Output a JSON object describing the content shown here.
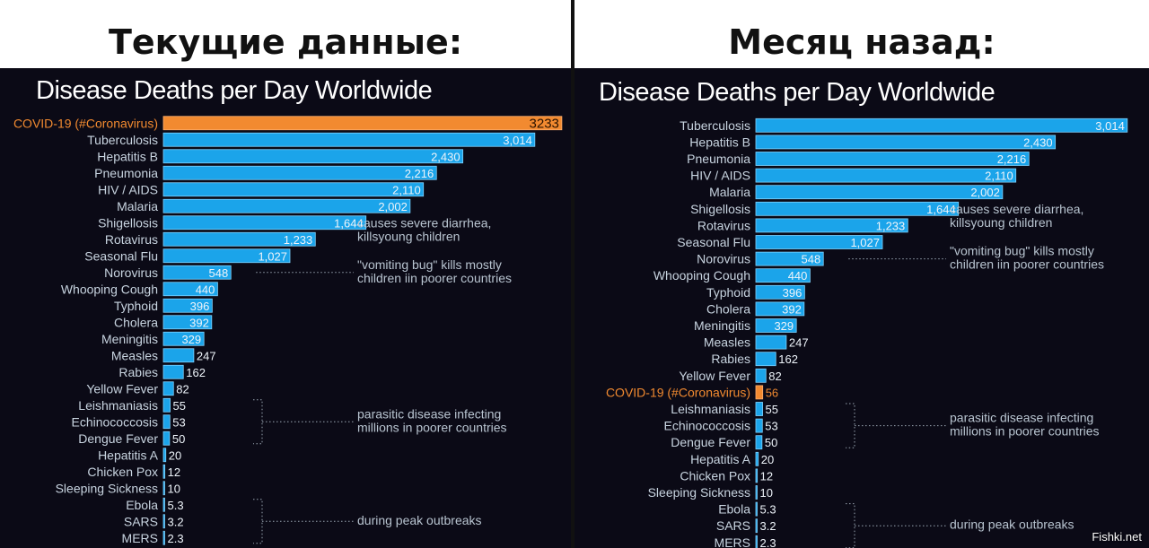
{
  "headings": {
    "left": "Текущие данные:",
    "right": "Месяц назад:"
  },
  "watermark": "Fishki.net",
  "colors": {
    "bar": "#1ba4ea",
    "bar_edge": "#7fd3ff",
    "highlight": "#f28a30",
    "background": "#0b0a16"
  },
  "chart_data": [
    {
      "type": "bar",
      "orientation": "horizontal",
      "title": "Disease Deaths per Day Worldwide",
      "highlight": "COVID-19 (#Coronavirus)",
      "categories": [
        "COVID-19 (#Coronavirus)",
        "Tuberculosis",
        "Hepatitis B",
        "Pneumonia",
        "HIV / AIDS",
        "Malaria",
        "Shigellosis",
        "Rotavirus",
        "Seasonal Flu",
        "Norovirus",
        "Whooping Cough",
        "Typhoid",
        "Cholera",
        "Meningitis",
        "Measles",
        "Rabies",
        "Yellow Fever",
        "Leishmaniasis",
        "Echinococcosis",
        "Dengue Fever",
        "Hepatitis A",
        "Chicken Pox",
        "Sleeping Sickness",
        "Ebola",
        "SARS",
        "MERS"
      ],
      "values": [
        3233,
        3014,
        2430,
        2216,
        2110,
        2002,
        1644,
        1233,
        1027,
        548,
        440,
        396,
        392,
        329,
        247,
        162,
        82,
        55,
        53,
        50,
        20,
        12,
        10,
        5.3,
        3.2,
        2.3
      ],
      "value_labels": [
        "3233",
        "3,014",
        "2,430",
        "2,216",
        "2,110",
        "2,002",
        "1,644",
        "1,233",
        "1,027",
        "548",
        "440",
        "396",
        "392",
        "329",
        "247",
        "162",
        "82",
        "55",
        "53",
        "50",
        "20",
        "12",
        "10",
        "5.3",
        "3.2",
        "2.3"
      ],
      "annotations": [
        {
          "lines": [
            "causes severe diarrhea,",
            "killsyoung children"
          ],
          "rows": [
            6,
            7
          ],
          "bracket": false
        },
        {
          "lines": [
            "\"vomiting bug\" kills mostly",
            "children iin poorer countries"
          ],
          "rows": [
            9
          ],
          "bracket": false
        },
        {
          "lines": [
            "parasitic disease infecting",
            "millions in poorer countries"
          ],
          "rows": [
            17,
            19
          ],
          "bracket": true
        },
        {
          "lines": [
            "during peak outbreaks"
          ],
          "rows": [
            23,
            25
          ],
          "bracket": true
        }
      ]
    },
    {
      "type": "bar",
      "orientation": "horizontal",
      "title": "Disease Deaths per Day Worldwide",
      "highlight": "COVID-19 (#Coronavirus)",
      "categories": [
        "Tuberculosis",
        "Hepatitis B",
        "Pneumonia",
        "HIV / AIDS",
        "Malaria",
        "Shigellosis",
        "Rotavirus",
        "Seasonal Flu",
        "Norovirus",
        "Whooping Cough",
        "Typhoid",
        "Cholera",
        "Meningitis",
        "Measles",
        "Rabies",
        "Yellow Fever",
        "COVID-19 (#Coronavirus)",
        "Leishmaniasis",
        "Echinococcosis",
        "Dengue Fever",
        "Hepatitis A",
        "Chicken Pox",
        "Sleeping Sickness",
        "Ebola",
        "SARS",
        "MERS"
      ],
      "values": [
        3014,
        2430,
        2216,
        2110,
        2002,
        1644,
        1233,
        1027,
        548,
        440,
        396,
        392,
        329,
        247,
        162,
        82,
        56,
        55,
        53,
        50,
        20,
        12,
        10,
        5.3,
        3.2,
        2.3
      ],
      "value_labels": [
        "3,014",
        "2,430",
        "2,216",
        "2,110",
        "2,002",
        "1,644",
        "1,233",
        "1,027",
        "548",
        "440",
        "396",
        "392",
        "329",
        "247",
        "162",
        "82",
        "56",
        "55",
        "53",
        "50",
        "20",
        "12",
        "10",
        "5.3",
        "3.2",
        "2.3"
      ],
      "annotations": [
        {
          "lines": [
            "causes severe diarrhea,",
            "killsyoung children"
          ],
          "rows": [
            5,
            6
          ],
          "bracket": false
        },
        {
          "lines": [
            "\"vomiting bug\" kills mostly",
            "children iin poorer countries"
          ],
          "rows": [
            8
          ],
          "bracket": false
        },
        {
          "lines": [
            "parasitic disease infecting",
            "millions in poorer countries"
          ],
          "rows": [
            17,
            19
          ],
          "bracket": true
        },
        {
          "lines": [
            "during peak outbreaks"
          ],
          "rows": [
            23,
            25
          ],
          "bracket": true
        }
      ]
    }
  ]
}
